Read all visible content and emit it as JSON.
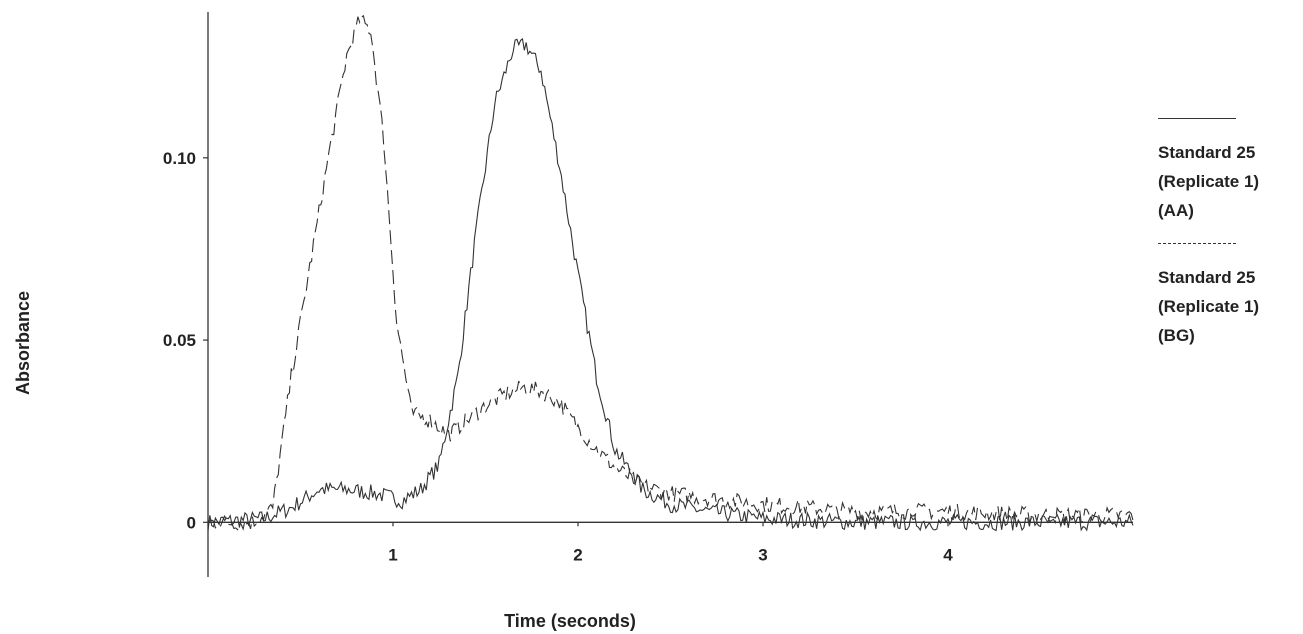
{
  "chart_data": {
    "type": "line",
    "xlabel": "Time (seconds)",
    "ylabel": "Absorbance",
    "xlim": [
      0,
      5
    ],
    "ylim": [
      -0.015,
      0.14
    ],
    "xticks": [
      {
        "value": 1,
        "label": "1"
      },
      {
        "value": 2,
        "label": "2"
      },
      {
        "value": 3,
        "label": "3"
      },
      {
        "value": 4,
        "label": "4"
      }
    ],
    "yticks": [
      {
        "value": 0,
        "label": "0"
      },
      {
        "value": 0.05,
        "label": "0.05"
      },
      {
        "value": 0.1,
        "label": "0.10"
      }
    ],
    "grid": false,
    "legend_position": "right",
    "series": [
      {
        "name": "Standard 25\n(Replicate 1)\n(AA)",
        "style": "solid",
        "color": "#333333",
        "points": [
          [
            0,
            0
          ],
          [
            0.3,
            0.001
          ],
          [
            0.45,
            0.004
          ],
          [
            0.6,
            0.009
          ],
          [
            0.75,
            0.009
          ],
          [
            0.9,
            0.008
          ],
          [
            1.05,
            0.006
          ],
          [
            1.15,
            0.009
          ],
          [
            1.25,
            0.016
          ],
          [
            1.35,
            0.04
          ],
          [
            1.45,
            0.08
          ],
          [
            1.55,
            0.115
          ],
          [
            1.65,
            0.13
          ],
          [
            1.72,
            0.131
          ],
          [
            1.8,
            0.124
          ],
          [
            1.9,
            0.098
          ],
          [
            2.0,
            0.068
          ],
          [
            2.1,
            0.04
          ],
          [
            2.2,
            0.02
          ],
          [
            2.35,
            0.009
          ],
          [
            2.5,
            0.005
          ],
          [
            2.7,
            0.003
          ],
          [
            3.0,
            0.001
          ],
          [
            3.5,
            0.0
          ],
          [
            4.0,
            0.0
          ],
          [
            4.5,
            0.0
          ],
          [
            5.0,
            0.0
          ]
        ]
      },
      {
        "name": "Standard 25\n(Replicate 1)\n(BG)",
        "style": "dashed",
        "color": "#333333",
        "points": [
          [
            0,
            0
          ],
          [
            0.25,
            0.0
          ],
          [
            0.35,
            0.004
          ],
          [
            0.45,
            0.04
          ],
          [
            0.55,
            0.07
          ],
          [
            0.65,
            0.1
          ],
          [
            0.75,
            0.128
          ],
          [
            0.82,
            0.138
          ],
          [
            0.88,
            0.135
          ],
          [
            0.95,
            0.105
          ],
          [
            1.02,
            0.055
          ],
          [
            1.1,
            0.03
          ],
          [
            1.2,
            0.028
          ],
          [
            1.3,
            0.024
          ],
          [
            1.4,
            0.028
          ],
          [
            1.5,
            0.032
          ],
          [
            1.6,
            0.035
          ],
          [
            1.7,
            0.037
          ],
          [
            1.8,
            0.036
          ],
          [
            1.9,
            0.033
          ],
          [
            2.0,
            0.026
          ],
          [
            2.1,
            0.02
          ],
          [
            2.2,
            0.015
          ],
          [
            2.35,
            0.01
          ],
          [
            2.5,
            0.008
          ],
          [
            2.8,
            0.006
          ],
          [
            3.0,
            0.005
          ],
          [
            3.5,
            0.003
          ],
          [
            4.0,
            0.003
          ],
          [
            4.5,
            0.002
          ],
          [
            5.0,
            0.002
          ]
        ]
      }
    ]
  }
}
